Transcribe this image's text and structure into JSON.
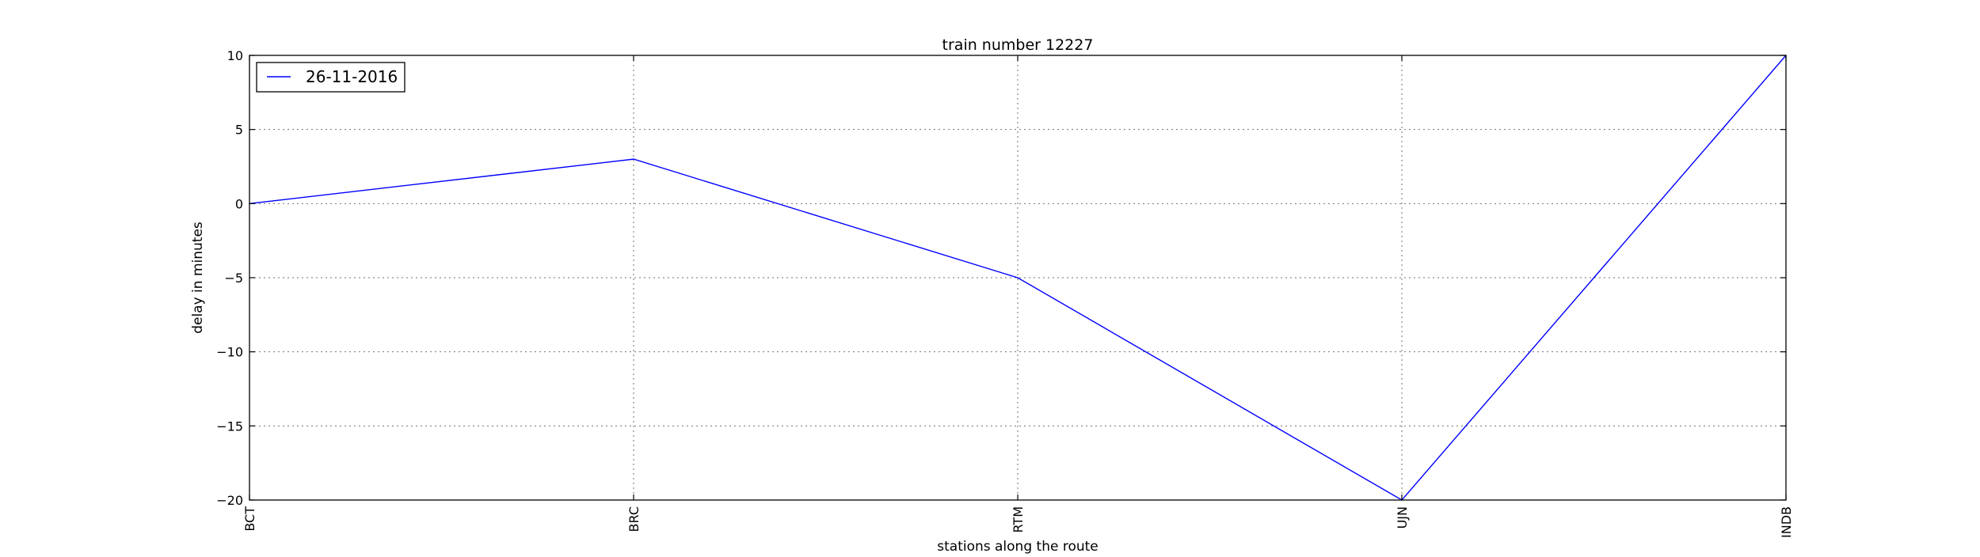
{
  "chart_data": {
    "type": "line",
    "title": "train number 12227",
    "xlabel": "stations along the route",
    "ylabel": "delay in minutes",
    "categories": [
      "BCT",
      "BRC",
      "RTM",
      "UJN",
      "INDB"
    ],
    "series": [
      {
        "name": "26-11-2016",
        "values": [
          0,
          3,
          -5,
          -20,
          10
        ],
        "color": "#0000ff"
      }
    ],
    "ylim": [
      -20,
      10
    ],
    "yticks": [
      -20,
      -15,
      -10,
      -5,
      0,
      5,
      10
    ],
    "ytick_labels": [
      "−20",
      "−15",
      "−10",
      "−5",
      "0",
      "5",
      "10"
    ],
    "grid": true,
    "legend_position": "upper left"
  }
}
